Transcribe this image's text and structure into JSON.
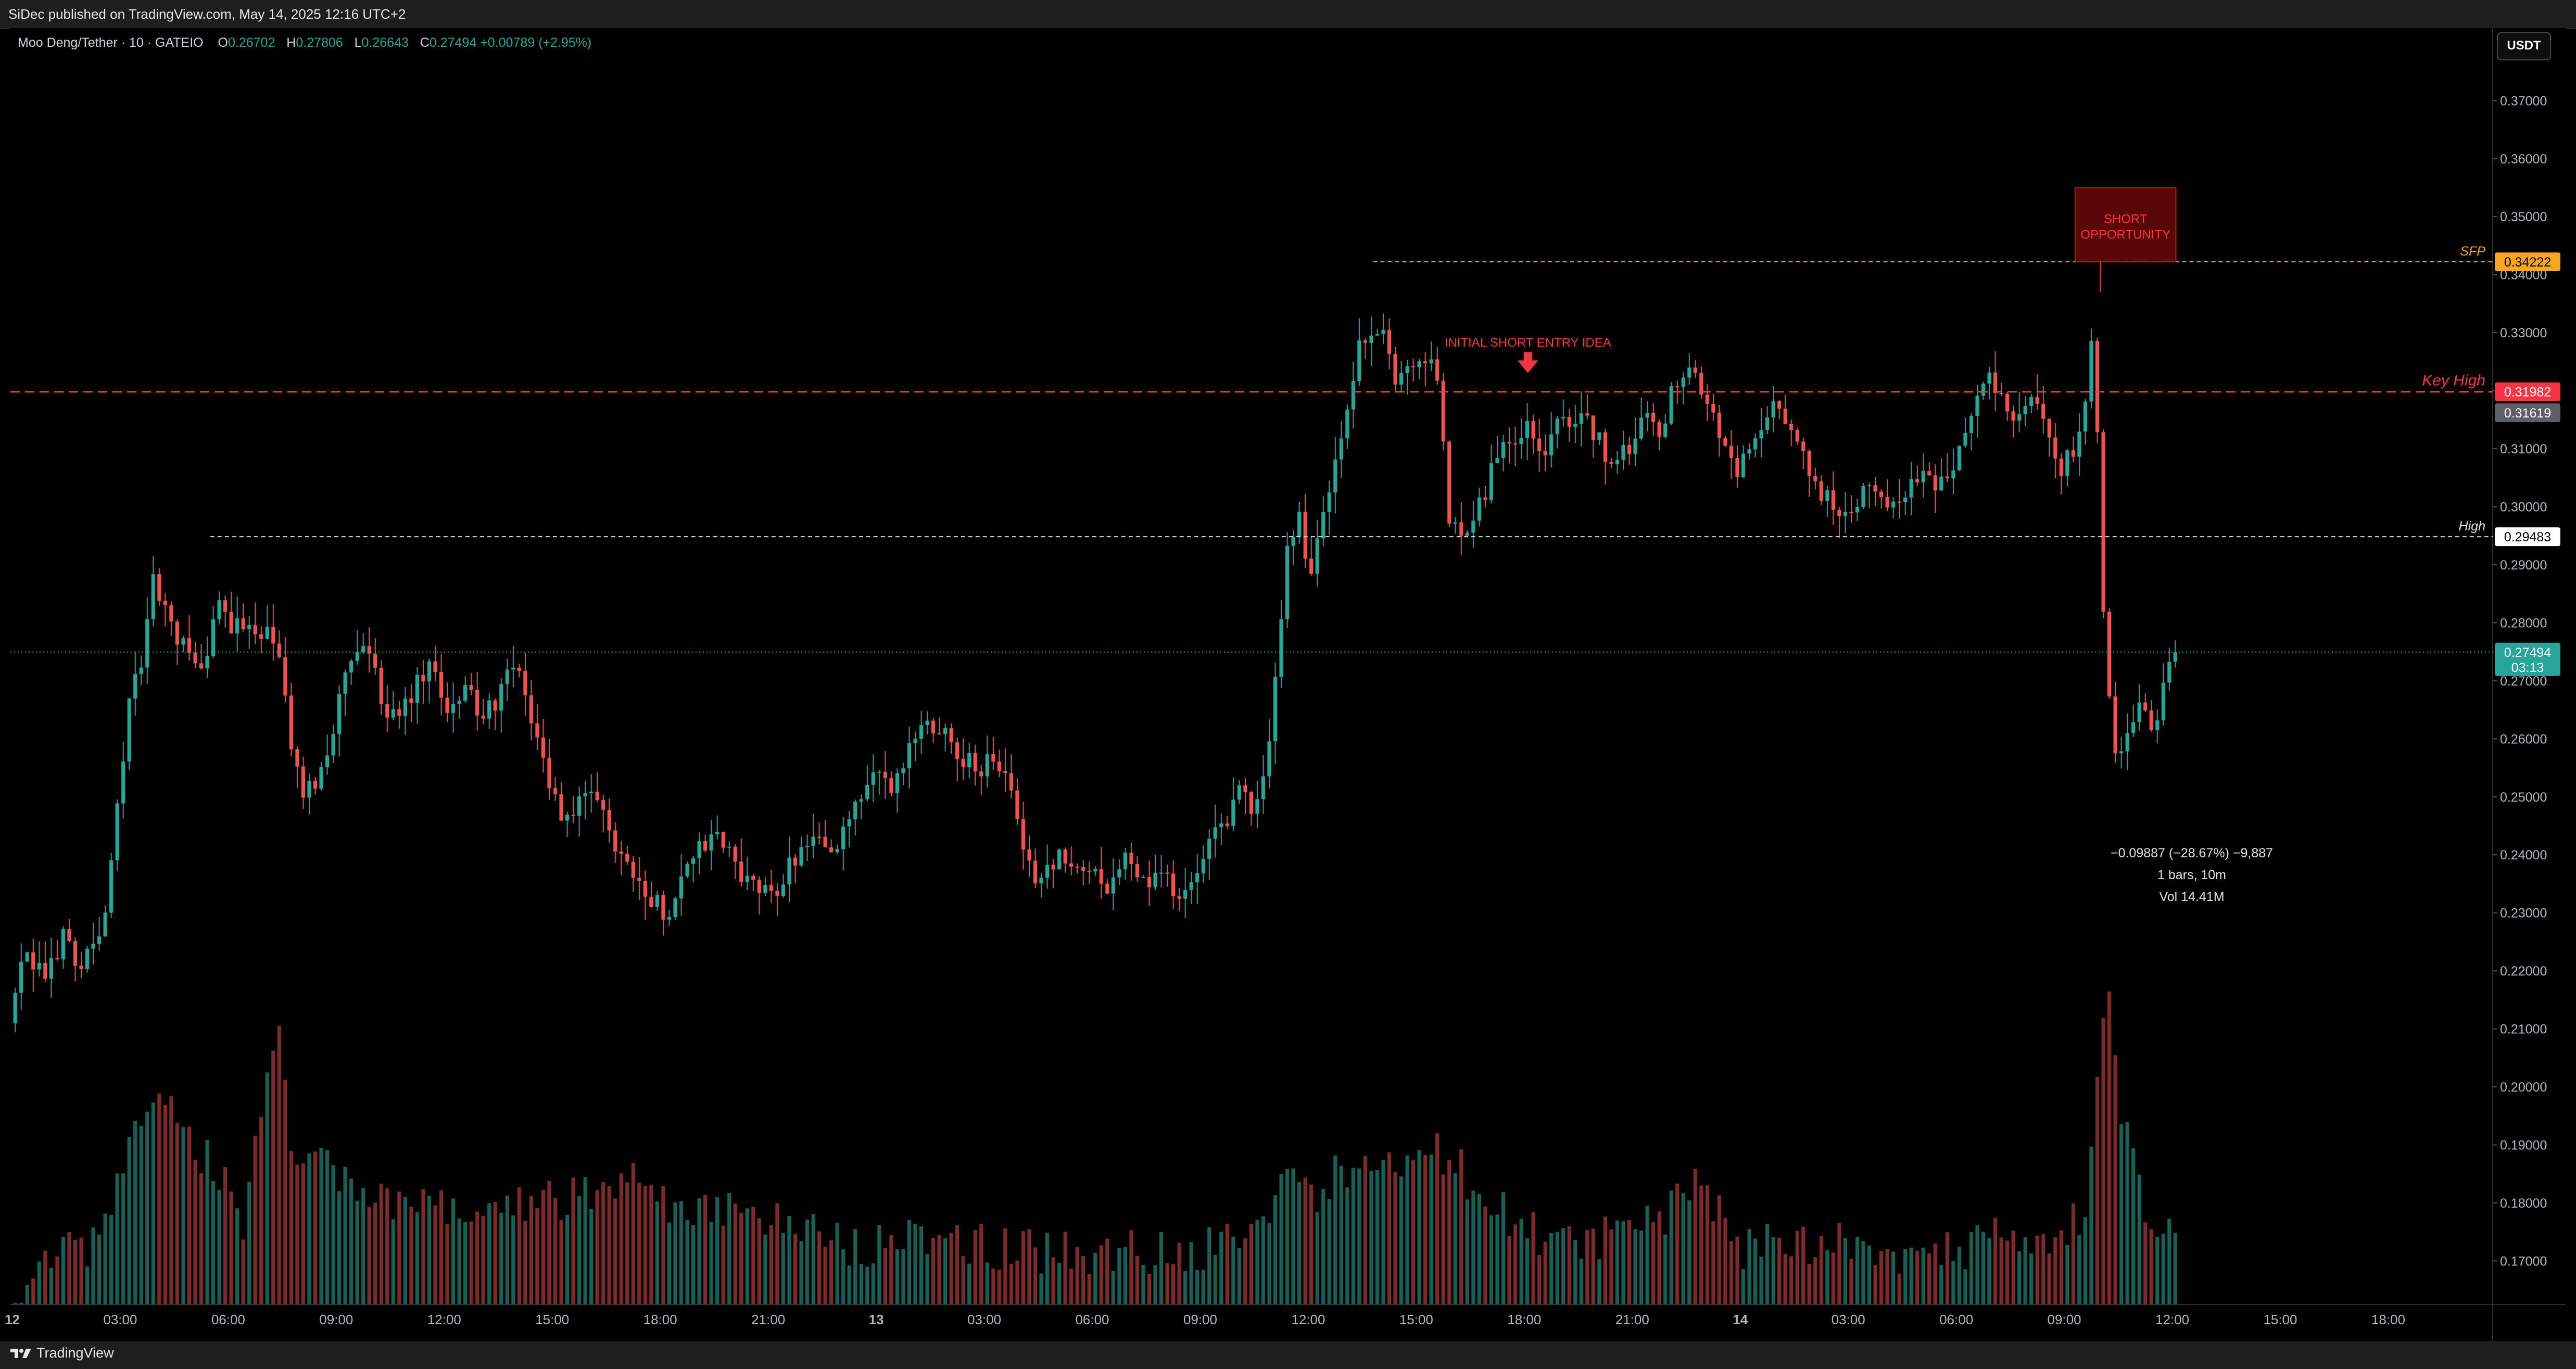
{
  "header": {
    "publisher_line": "SiDec published on TradingView.com, May 14, 2025 12:16 UTC+2"
  },
  "legend": {
    "symbol": "Moo Deng/Tether · 10 · GATEIO",
    "open_label": "O",
    "open": "0.26702",
    "high_label": "H",
    "high": "0.27806",
    "low_label": "L",
    "low": "0.26643",
    "close_label": "C",
    "close": "0.27494",
    "change": "+0.00789 (+2.95%)"
  },
  "currency_button": "USDT",
  "footer": {
    "logo_label": "TradingView"
  },
  "colors": {
    "up": "#26a69a",
    "down": "#ef5350",
    "orange": "#f5a623",
    "key": "#f23645"
  },
  "icons": [
    "tradingview-logo-icon",
    "arrow-down-icon"
  ],
  "chart_data": {
    "type": "candlestick",
    "symbol": "Moo Deng/Tether",
    "interval": "10",
    "exchange": "GATEIO",
    "quote_currency": "USDT",
    "ylim": [
      0.1625,
      0.3825
    ],
    "y_ticks": [
      "0.17000",
      "0.18000",
      "0.19000",
      "0.20000",
      "0.21000",
      "0.22000",
      "0.23000",
      "0.24000",
      "0.25000",
      "0.26000",
      "0.27000",
      "0.28000",
      "0.29000",
      "0.30000",
      "0.31000",
      "0.32000",
      "0.33000",
      "0.34000",
      "0.35000",
      "0.36000",
      "0.37000"
    ],
    "x_ticks": [
      {
        "label": "12",
        "t": 0
      },
      {
        "label": "03:00",
        "t": 3
      },
      {
        "label": "06:00",
        "t": 6
      },
      {
        "label": "09:00",
        "t": 9
      },
      {
        "label": "12:00",
        "t": 12
      },
      {
        "label": "15:00",
        "t": 15
      },
      {
        "label": "18:00",
        "t": 18
      },
      {
        "label": "21:00",
        "t": 21
      },
      {
        "label": "13",
        "t": 24
      },
      {
        "label": "03:00",
        "t": 27
      },
      {
        "label": "06:00",
        "t": 30
      },
      {
        "label": "09:00",
        "t": 33
      },
      {
        "label": "12:00",
        "t": 36
      },
      {
        "label": "15:00",
        "t": 39
      },
      {
        "label": "18:00",
        "t": 42
      },
      {
        "label": "21:00",
        "t": 45
      },
      {
        "label": "14",
        "t": 48
      },
      {
        "label": "03:00",
        "t": 51
      },
      {
        "label": "06:00",
        "t": 54
      },
      {
        "label": "09:00",
        "t": 57
      },
      {
        "label": "12:00",
        "t": 60
      },
      {
        "label": "15:00",
        "t": 63
      },
      {
        "label": "18:00",
        "t": 66
      }
    ],
    "x_range_hours": [
      -0.05,
      68.9
    ],
    "price_path": [
      [
        0.0,
        0.211
      ],
      [
        0.4,
        0.222
      ],
      [
        1.0,
        0.219
      ],
      [
        1.5,
        0.226
      ],
      [
        2.0,
        0.221
      ],
      [
        2.7,
        0.229
      ],
      [
        3.0,
        0.249
      ],
      [
        3.3,
        0.265
      ],
      [
        3.7,
        0.274
      ],
      [
        4.0,
        0.287
      ],
      [
        4.4,
        0.281
      ],
      [
        4.8,
        0.276
      ],
      [
        5.3,
        0.271
      ],
      [
        5.8,
        0.283
      ],
      [
        6.3,
        0.279
      ],
      [
        7.0,
        0.279
      ],
      [
        7.5,
        0.275
      ],
      [
        7.8,
        0.258
      ],
      [
        8.2,
        0.25
      ],
      [
        8.6,
        0.254
      ],
      [
        9.0,
        0.262
      ],
      [
        9.4,
        0.272
      ],
      [
        9.9,
        0.276
      ],
      [
        10.3,
        0.268
      ],
      [
        10.8,
        0.262
      ],
      [
        11.2,
        0.268
      ],
      [
        11.7,
        0.272
      ],
      [
        12.2,
        0.265
      ],
      [
        12.7,
        0.27
      ],
      [
        13.1,
        0.262
      ],
      [
        13.6,
        0.268
      ],
      [
        14.0,
        0.272
      ],
      [
        14.3,
        0.268
      ],
      [
        14.6,
        0.262
      ],
      [
        15.0,
        0.252
      ],
      [
        15.4,
        0.246
      ],
      [
        15.8,
        0.248
      ],
      [
        16.3,
        0.25
      ],
      [
        16.8,
        0.242
      ],
      [
        17.3,
        0.238
      ],
      [
        17.8,
        0.232
      ],
      [
        18.3,
        0.23
      ],
      [
        18.6,
        0.236
      ],
      [
        19.1,
        0.241
      ],
      [
        19.7,
        0.243
      ],
      [
        20.2,
        0.238
      ],
      [
        20.7,
        0.234
      ],
      [
        21.1,
        0.233
      ],
      [
        21.5,
        0.236
      ],
      [
        22.0,
        0.242
      ],
      [
        22.5,
        0.243
      ],
      [
        23.0,
        0.241
      ],
      [
        23.6,
        0.249
      ],
      [
        24.0,
        0.254
      ],
      [
        24.4,
        0.251
      ],
      [
        24.8,
        0.255
      ],
      [
        25.2,
        0.262
      ],
      [
        25.7,
        0.263
      ],
      [
        26.1,
        0.261
      ],
      [
        26.5,
        0.256
      ],
      [
        26.9,
        0.255
      ],
      [
        27.4,
        0.256
      ],
      [
        27.8,
        0.252
      ],
      [
        28.2,
        0.238
      ],
      [
        28.6,
        0.236
      ],
      [
        29.1,
        0.24
      ],
      [
        29.5,
        0.237
      ],
      [
        30.0,
        0.238
      ],
      [
        30.5,
        0.235
      ],
      [
        31.0,
        0.239
      ],
      [
        31.5,
        0.235
      ],
      [
        32.0,
        0.237
      ],
      [
        32.5,
        0.233
      ],
      [
        33.0,
        0.236
      ],
      [
        33.4,
        0.242
      ],
      [
        33.8,
        0.246
      ],
      [
        34.2,
        0.251
      ],
      [
        34.6,
        0.247
      ],
      [
        34.9,
        0.255
      ],
      [
        35.2,
        0.272
      ],
      [
        35.5,
        0.293
      ],
      [
        35.8,
        0.299
      ],
      [
        36.1,
        0.288
      ],
      [
        36.4,
        0.296
      ],
      [
        36.8,
        0.306
      ],
      [
        37.2,
        0.316
      ],
      [
        37.5,
        0.328
      ],
      [
        37.8,
        0.329
      ],
      [
        38.1,
        0.33
      ],
      [
        38.5,
        0.322
      ],
      [
        38.9,
        0.325
      ],
      [
        39.3,
        0.326
      ],
      [
        39.7,
        0.321
      ],
      [
        40.0,
        0.298
      ],
      [
        40.3,
        0.295
      ],
      [
        40.7,
        0.3
      ],
      [
        41.0,
        0.303
      ],
      [
        41.4,
        0.311
      ],
      [
        41.8,
        0.312
      ],
      [
        42.2,
        0.315
      ],
      [
        42.6,
        0.307
      ],
      [
        43.0,
        0.317
      ],
      [
        43.4,
        0.315
      ],
      [
        43.8,
        0.314
      ],
      [
        44.2,
        0.311
      ],
      [
        44.6,
        0.307
      ],
      [
        45.1,
        0.311
      ],
      [
        45.5,
        0.318
      ],
      [
        45.8,
        0.311
      ],
      [
        46.2,
        0.321
      ],
      [
        46.7,
        0.326
      ],
      [
        47.1,
        0.318
      ],
      [
        47.5,
        0.312
      ],
      [
        48.0,
        0.306
      ],
      [
        48.5,
        0.311
      ],
      [
        49.0,
        0.317
      ],
      [
        49.5,
        0.313
      ],
      [
        50.0,
        0.305
      ],
      [
        50.4,
        0.302
      ],
      [
        50.8,
        0.299
      ],
      [
        51.2,
        0.3
      ],
      [
        51.6,
        0.303
      ],
      [
        52.0,
        0.302
      ],
      [
        52.4,
        0.3
      ],
      [
        52.8,
        0.304
      ],
      [
        53.2,
        0.307
      ],
      [
        53.6,
        0.303
      ],
      [
        54.0,
        0.308
      ],
      [
        54.5,
        0.316
      ],
      [
        54.9,
        0.323
      ],
      [
        55.3,
        0.318
      ],
      [
        55.8,
        0.314
      ],
      [
        56.2,
        0.318
      ],
      [
        56.6,
        0.314
      ],
      [
        57.0,
        0.307
      ],
      [
        57.4,
        0.31
      ],
      [
        57.7,
        0.318
      ],
      [
        57.9,
        0.334
      ],
      [
        58.15,
        0.285
      ],
      [
        58.45,
        0.255
      ],
      [
        58.8,
        0.262
      ],
      [
        59.2,
        0.265
      ],
      [
        59.5,
        0.262
      ],
      [
        59.9,
        0.269
      ],
      [
        60.1,
        0.274
      ]
    ],
    "volume_peaks": [
      [
        0,
        0.165
      ],
      [
        1,
        0.175
      ],
      [
        2,
        0.176
      ],
      [
        3,
        0.189
      ],
      [
        3.8,
        0.205
      ],
      [
        4.6,
        0.196
      ],
      [
        5.5,
        0.191
      ],
      [
        6.3,
        0.18
      ],
      [
        7.3,
        0.215
      ],
      [
        7.8,
        0.19
      ],
      [
        8.8,
        0.19
      ],
      [
        10,
        0.183
      ],
      [
        11,
        0.186
      ],
      [
        12,
        0.182
      ],
      [
        13.5,
        0.182
      ],
      [
        14.7,
        0.185
      ],
      [
        16,
        0.185
      ],
      [
        17.2,
        0.19
      ],
      [
        18.5,
        0.181
      ],
      [
        20,
        0.182
      ],
      [
        21.8,
        0.18
      ],
      [
        23,
        0.176
      ],
      [
        24.5,
        0.178
      ],
      [
        26,
        0.177
      ],
      [
        28,
        0.176
      ],
      [
        29.5,
        0.175
      ],
      [
        31,
        0.176
      ],
      [
        32.5,
        0.175
      ],
      [
        34,
        0.178
      ],
      [
        35.3,
        0.188
      ],
      [
        36.2,
        0.186
      ],
      [
        37.5,
        0.193
      ],
      [
        38.5,
        0.189
      ],
      [
        39.8,
        0.193
      ],
      [
        41,
        0.183
      ],
      [
        42.5,
        0.178
      ],
      [
        44,
        0.178
      ],
      [
        45.5,
        0.18
      ],
      [
        46.7,
        0.189
      ],
      [
        48,
        0.176
      ],
      [
        49.5,
        0.177
      ],
      [
        51,
        0.177
      ],
      [
        52.5,
        0.174
      ],
      [
        54,
        0.176
      ],
      [
        55.2,
        0.18
      ],
      [
        56.5,
        0.178
      ],
      [
        57.5,
        0.182
      ],
      [
        58.1,
        0.22
      ],
      [
        58.5,
        0.2
      ],
      [
        59.2,
        0.18
      ],
      [
        60,
        0.178
      ]
    ],
    "horizontal_levels": [
      {
        "id": "sfp",
        "label": "SFP",
        "price": 0.34222,
        "price_label": "0.34222",
        "style": "dashed",
        "color": "#f5a623",
        "from_hour": 37.8
      },
      {
        "id": "key-high",
        "label": "Key High",
        "price": 0.31982,
        "price_label": "0.31982",
        "style": "dashed",
        "color": "#f23645",
        "from_hour": -0.05
      },
      {
        "id": "high",
        "label": "High",
        "price": 0.29483,
        "price_label": "0.29483",
        "style": "dashed",
        "color": "#e0e0e0",
        "from_hour": 5.5
      },
      {
        "id": "last",
        "label": "",
        "price": 0.27494,
        "price_label": "0.27494",
        "countdown": "03:13",
        "style": "dotted",
        "color": "#26a69a",
        "from_hour": -0.05
      }
    ],
    "extra_price_label": {
      "price": 0.31619,
      "label": "0.31619"
    },
    "annotations": [
      {
        "id": "short-opportunity",
        "text_lines": [
          "SHORT",
          "OPPORTUNITY"
        ],
        "hour_from": 57.3,
        "hour_to": 60.1,
        "price_from": 0.3422,
        "price_to": 0.355
      },
      {
        "id": "initial-short",
        "text": "INITIAL SHORT ENTRY IDEA",
        "hour": 42.1,
        "price": 0.3276,
        "arrow_price": 0.3245
      }
    ],
    "measurement": {
      "line1": "−0.09887 (−28.67%) −9,887",
      "line2": "1 bars, 10m",
      "line3": "Vol 14.41M"
    }
  }
}
